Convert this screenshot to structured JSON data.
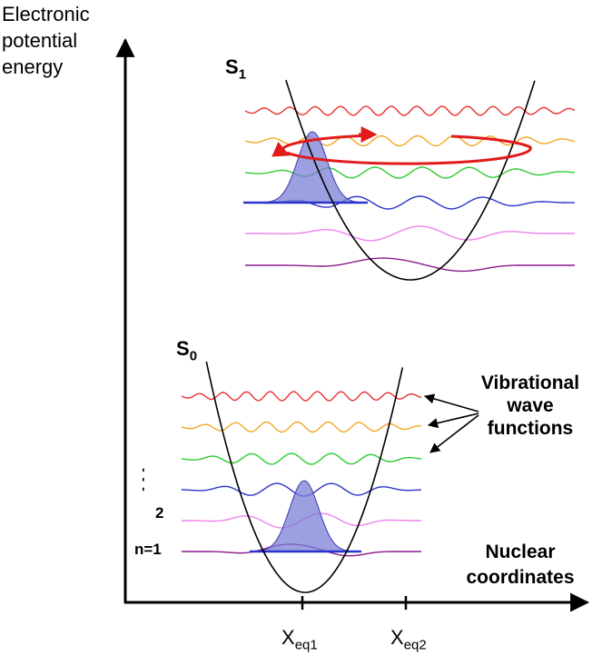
{
  "axes": {
    "y_label_lines": [
      "Electronic",
      "potential",
      "energy"
    ],
    "x_label_lines": [
      "Nuclear",
      "coordinates"
    ],
    "x_ticks": [
      {
        "main": "X",
        "sub": "eq1"
      },
      {
        "main": "X",
        "sub": "eq2"
      }
    ]
  },
  "states": {
    "excited": {
      "main": "S",
      "sub": "1"
    },
    "ground": {
      "main": "S",
      "sub": "0"
    }
  },
  "annotation": {
    "lines": [
      "Vibrational",
      "wave",
      "functions"
    ]
  },
  "level_labels": {
    "ellipsis": "- - -",
    "level2": "2",
    "level1": "n=1"
  },
  "colors": {
    "level_colors": [
      "#e8312f",
      "#f5a623",
      "#2ecc2e",
      "#2a34cc",
      "#ee82ee",
      "#8b1a8b"
    ],
    "wavepacket_fill": "#7b7fd6",
    "wavepacket_stroke": "#3a3ab0",
    "orbit": "#e11b1b",
    "potential_curve": "#000000"
  }
}
